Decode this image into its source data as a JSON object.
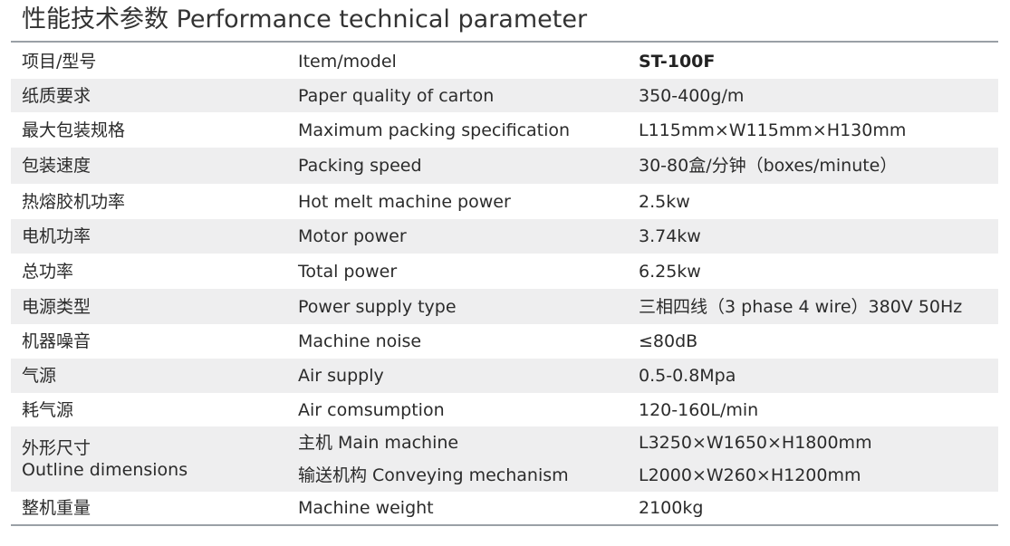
{
  "title": "性能技术参数 Performance technical parameter",
  "rows": [
    {
      "cn": "项目/型号",
      "en": "Item/model",
      "value": "ST-100F",
      "bold": true
    },
    {
      "cn": "纸质要求",
      "en": "Paper quality of carton",
      "value": "350-400g/m"
    },
    {
      "cn": "最大包装规格",
      "en": "Maximum packing specification",
      "value": "L115mm×W115mm×H130mm"
    },
    {
      "cn": "包装速度",
      "en": "Packing speed",
      "value": "30-80盒/分钟（boxes/minute）"
    },
    {
      "cn": "热熔胶机功率",
      "en": "Hot melt machine power",
      "value": "2.5kw"
    },
    {
      "cn": "电机功率",
      "en": "Motor power",
      "value": "3.74kw"
    },
    {
      "cn": "总功率",
      "en": "Total power",
      "value": "6.25kw"
    },
    {
      "cn": "电源类型",
      "en": "Power supply type",
      "value": "三相四线（3 phase 4 wire）380V 50Hz"
    },
    {
      "cn": "机器噪音",
      "en": "Machine noise",
      "value": "≤80dB"
    },
    {
      "cn": "气源",
      "en": "Air supply",
      "value": "0.5-0.8Mpa"
    },
    {
      "cn": "耗气源",
      "en": "Air comsumption",
      "value": "120-160L/min"
    }
  ],
  "outline": {
    "cn": "外形尺寸",
    "en": "Outline dimensions",
    "main_label": "主机 Main machine",
    "main_value": "L3250×W1650×H1800mm",
    "conveying_label": "输送机构 Conveying mechanism",
    "conveying_value": "L2000×W260×H1200mm"
  },
  "weight": {
    "cn": "整机重量",
    "en": "Machine weight",
    "value": "2100kg"
  },
  "colors": {
    "shade": "#eeeeef",
    "rule": "#9aa0a6",
    "text": "#2b2b2b"
  }
}
